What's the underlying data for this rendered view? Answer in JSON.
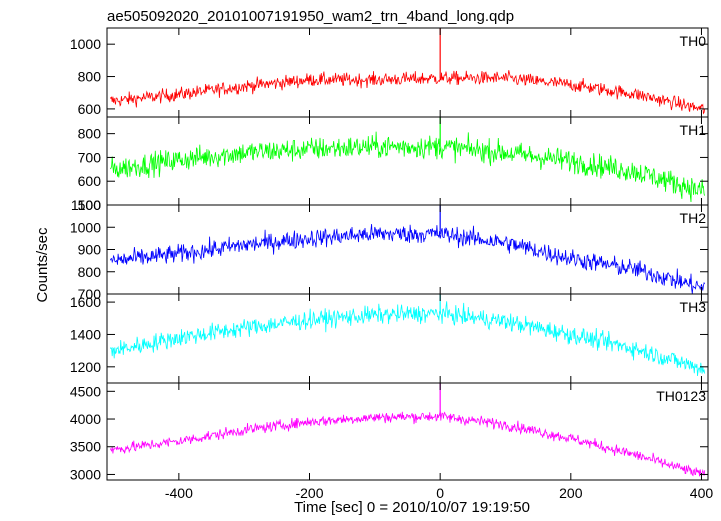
{
  "title": "ae505092020_20101007191950_wam2_trn_4band_long.qdp",
  "ylabel": "Counts/sec",
  "xlabel": "Time [sec] 0 = 2010/10/07 19:19:50",
  "chart_data": {
    "type": "line",
    "title": "ae505092020_20101007191950_wam2_trn_4band_long.qdp",
    "xlabel": "Time [sec] 0 = 2010/10/07 19:19:50",
    "ylabel": "Counts/sec",
    "xlim": [
      -510,
      410
    ],
    "x_ticks": [
      -400,
      -200,
      0,
      200,
      400
    ],
    "grid": false,
    "shared_x": true,
    "panels": [
      {
        "name": "TH0",
        "color": "#ff0000",
        "ylim": [
          550,
          1100
        ],
        "y_ticks": [
          600,
          800,
          1000
        ],
        "x": [
          -500,
          -400,
          -300,
          -200,
          -100,
          0,
          100,
          200,
          300,
          400
        ],
        "values": [
          650,
          690,
          740,
          780,
          780,
          790,
          790,
          750,
          690,
          600
        ],
        "spike": {
          "x": 0,
          "value": 1100
        },
        "noise": 30
      },
      {
        "name": "TH1",
        "color": "#00ff00",
        "ylim": [
          500,
          870
        ],
        "y_ticks": [
          500,
          600,
          700,
          800
        ],
        "x": [
          -500,
          -400,
          -300,
          -200,
          -100,
          0,
          100,
          200,
          300,
          400
        ],
        "values": [
          650,
          690,
          720,
          735,
          745,
          745,
          720,
          685,
          640,
          560
        ],
        "spike": {
          "x": 0,
          "value": 870
        },
        "noise": 35
      },
      {
        "name": "TH2",
        "color": "#0000ff",
        "ylim": [
          700,
          1100
        ],
        "y_ticks": [
          700,
          800,
          900,
          1000,
          1100
        ],
        "x": [
          -500,
          -400,
          -300,
          -200,
          -100,
          0,
          100,
          200,
          300,
          400
        ],
        "values": [
          850,
          880,
          920,
          950,
          970,
          970,
          930,
          860,
          810,
          730
        ],
        "spike": {
          "x": 0,
          "value": 1100
        },
        "noise": 30
      },
      {
        "name": "TH3",
        "color": "#00ffff",
        "ylim": [
          1100,
          1650
        ],
        "y_ticks": [
          1200,
          1400,
          1600
        ],
        "x": [
          -500,
          -400,
          -300,
          -200,
          -100,
          0,
          100,
          200,
          300,
          400
        ],
        "values": [
          1300,
          1380,
          1440,
          1490,
          1520,
          1530,
          1480,
          1400,
          1310,
          1190
        ],
        "spike": {
          "x": 0,
          "value": 1650
        },
        "noise": 40
      },
      {
        "name": "TH0123",
        "color": "#ff00ff",
        "ylim": [
          2900,
          4650
        ],
        "y_ticks": [
          3000,
          3500,
          4000,
          4500
        ],
        "x": [
          -500,
          -400,
          -300,
          -200,
          -100,
          0,
          100,
          200,
          300,
          400
        ],
        "values": [
          3450,
          3600,
          3800,
          3950,
          4030,
          4050,
          3900,
          3650,
          3350,
          3000
        ],
        "spike": {
          "x": 0,
          "value": 4700
        },
        "noise": 70
      }
    ]
  }
}
